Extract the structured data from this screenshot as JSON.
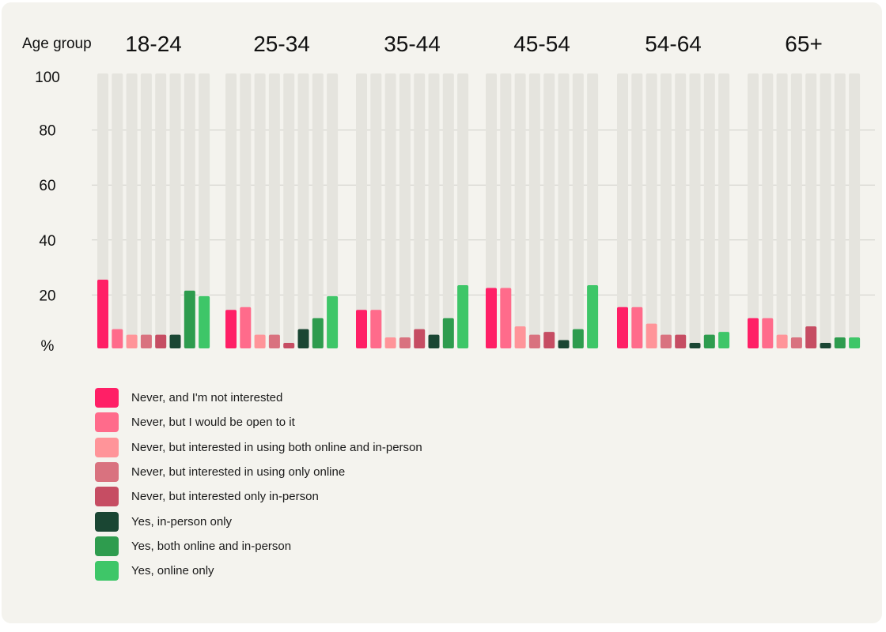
{
  "chart_data": {
    "type": "bar",
    "title": "",
    "xlabel": "Age group",
    "ylabel": "%",
    "ylim": [
      0,
      100
    ],
    "yticks": [
      100,
      80,
      60,
      40,
      20
    ],
    "ylabel_unit": "%",
    "grid": true,
    "background_bar_value": 100,
    "legend_position": "bottom-left",
    "categories": [
      "18-24",
      "25-34",
      "35-44",
      "45-54",
      "54-64",
      "65+"
    ],
    "series": [
      {
        "name": "Never, and I'm not interested",
        "color": "#ff1f66",
        "values": [
          25,
          14,
          14,
          22,
          15,
          11
        ]
      },
      {
        "name": "Never, but I would be open to it",
        "color": "#ff6b8b",
        "values": [
          7,
          15,
          14,
          22,
          15,
          11
        ]
      },
      {
        "name": "Never, but interested in using both online and in-person",
        "color": "#ff9499",
        "values": [
          5,
          5,
          4,
          8,
          9,
          5
        ]
      },
      {
        "name": "Never, but interested in using only online",
        "color": "#d9727f",
        "values": [
          5,
          5,
          4,
          5,
          5,
          4
        ]
      },
      {
        "name": "Never, but interested only in-person",
        "color": "#c64d63",
        "values": [
          5,
          2,
          7,
          6,
          5,
          8
        ]
      },
      {
        "name": "Yes, in-person only",
        "color": "#1a4633",
        "values": [
          5,
          7,
          5,
          3,
          2,
          2
        ]
      },
      {
        "name": "Yes, both online and in-person",
        "color": "#2e9c4e",
        "values": [
          21,
          11,
          11,
          7,
          5,
          4
        ]
      },
      {
        "name": "Yes, online only",
        "color": "#3ec668",
        "values": [
          19,
          19,
          23,
          23,
          6,
          4
        ]
      }
    ]
  }
}
